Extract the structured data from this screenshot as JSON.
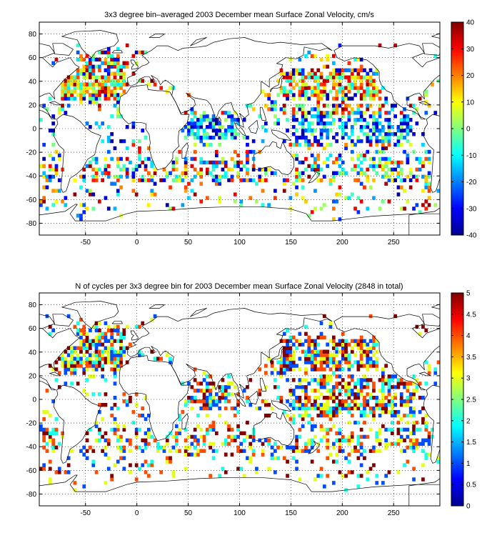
{
  "chart_data": [
    {
      "type": "heatmap",
      "title": "3x3 degree bin–averaged 2003 December mean Surface Zonal Velocity, cm/s",
      "xlim": [
        -95,
        295
      ],
      "ylim": [
        -90,
        90
      ],
      "x_ticks": [
        -50,
        0,
        50,
        100,
        150,
        200,
        250
      ],
      "y_ticks": [
        80,
        60,
        40,
        20,
        0,
        -20,
        -40,
        -60,
        -80
      ],
      "grid": true,
      "colorbar": {
        "min": -40,
        "max": 40,
        "ticks": [
          40,
          30,
          20,
          10,
          0,
          -10,
          -20,
          -30,
          -40
        ],
        "colormap": "jet"
      },
      "bin_size_deg": 3
    },
    {
      "type": "heatmap",
      "title": "N of cycles per 3x3 degree bin for 2003 December mean Surface Zonal Velocity (2848 in total)",
      "xlim": [
        -95,
        295
      ],
      "ylim": [
        -90,
        90
      ],
      "x_ticks": [
        -50,
        0,
        50,
        100,
        150,
        200,
        250
      ],
      "y_ticks": [
        80,
        60,
        40,
        20,
        0,
        -20,
        -40,
        -60,
        -80
      ],
      "grid": true,
      "colorbar": {
        "min": 0,
        "max": 5,
        "ticks": [
          5,
          4.5,
          4,
          3.5,
          3,
          2.5,
          2,
          1.5,
          1,
          0.5,
          0
        ],
        "colormap": "jet"
      },
      "bin_size_deg": 3
    }
  ]
}
